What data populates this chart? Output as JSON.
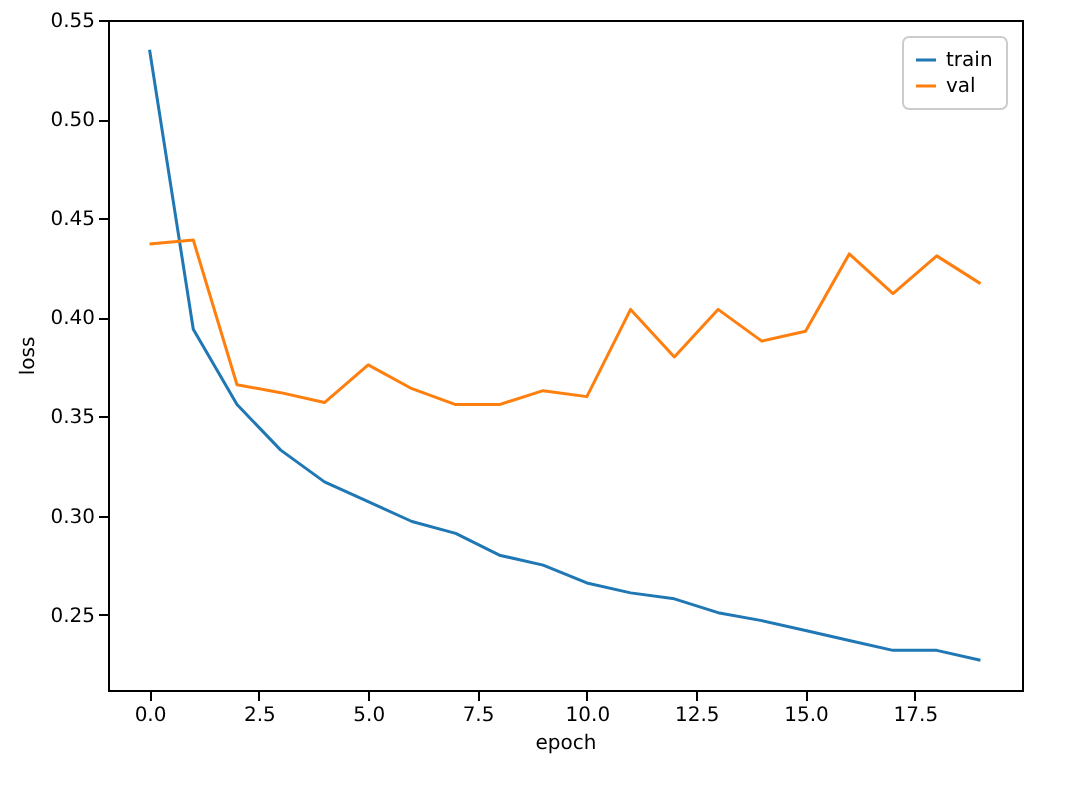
{
  "chart_data": {
    "type": "line",
    "xlabel": "epoch",
    "ylabel": "loss",
    "x": [
      0,
      1,
      2,
      3,
      4,
      5,
      6,
      7,
      8,
      9,
      10,
      11,
      12,
      13,
      14,
      15,
      16,
      17,
      18,
      19
    ],
    "series": [
      {
        "name": "train",
        "color": "#1f77b4",
        "values": [
          0.535,
          0.394,
          0.356,
          0.333,
          0.317,
          0.307,
          0.297,
          0.291,
          0.28,
          0.275,
          0.266,
          0.261,
          0.258,
          0.251,
          0.247,
          0.242,
          0.237,
          0.232,
          0.232,
          0.227
        ]
      },
      {
        "name": "val",
        "color": "#ff7f0e",
        "values": [
          0.437,
          0.439,
          0.366,
          0.362,
          0.357,
          0.376,
          0.364,
          0.356,
          0.356,
          0.363,
          0.36,
          0.404,
          0.38,
          0.404,
          0.388,
          0.393,
          0.432,
          0.412,
          0.431,
          0.417
        ]
      }
    ],
    "xlim": [
      -0.95,
      19.95
    ],
    "xticks": [
      {
        "value": 0,
        "label": "0.0"
      },
      {
        "value": 2.5,
        "label": "2.5"
      },
      {
        "value": 5,
        "label": "5.0"
      },
      {
        "value": 7.5,
        "label": "7.5"
      },
      {
        "value": 10,
        "label": "10.0"
      },
      {
        "value": 12.5,
        "label": "12.5"
      },
      {
        "value": 15,
        "label": "15.0"
      },
      {
        "value": 17.5,
        "label": "17.5"
      }
    ],
    "ylim": [
      0.212,
      0.55
    ],
    "yticks": [
      {
        "value": 0.25,
        "label": "0.25"
      },
      {
        "value": 0.3,
        "label": "0.30"
      },
      {
        "value": 0.35,
        "label": "0.35"
      },
      {
        "value": 0.4,
        "label": "0.40"
      },
      {
        "value": 0.45,
        "label": "0.45"
      },
      {
        "value": 0.5,
        "label": "0.50"
      },
      {
        "value": 0.55,
        "label": "0.55"
      }
    ],
    "grid": false,
    "legend": "top right",
    "line_style": "solid",
    "marker": "none"
  }
}
